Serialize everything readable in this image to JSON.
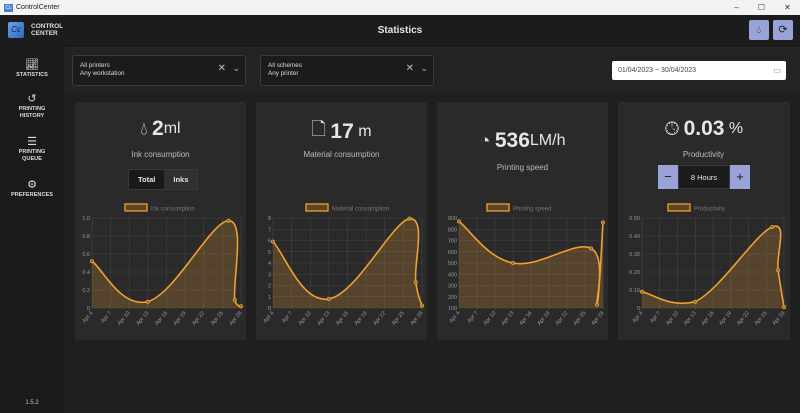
{
  "window": {
    "title": "ControlCenter",
    "minimize": "–",
    "maximize": "☐",
    "close": "✕"
  },
  "header": {
    "brand_line1": "CONTROL",
    "brand_line2": "CENTER",
    "logo": "Cc",
    "title": "Statistics",
    "ink_button_icon": "droplet-icon",
    "refresh_button_icon": "refresh-icon"
  },
  "sidebar": {
    "items": [
      {
        "label": "STATISTICS",
        "icon": "chart-icon"
      },
      {
        "label": "PRINTING HISTORY",
        "icon": "history-icon"
      },
      {
        "label": "PRINTING QUEUE",
        "icon": "list-icon"
      },
      {
        "label": "PREFERENCES",
        "icon": "gear-icon"
      }
    ],
    "version": "1.5.2"
  },
  "filters": {
    "printers": {
      "line1": "All printers",
      "line2": "Any workstation"
    },
    "schemes": {
      "line1": "All schemes",
      "line2": "Any printer"
    },
    "date_range": "01/04/2023 ~ 30/04/2023"
  },
  "cards": [
    {
      "value": "2",
      "unit": "ml",
      "label": "Ink consumption",
      "icon": "droplet-icon",
      "toggle": [
        "Total",
        "Inks"
      ],
      "active_toggle": "Total"
    },
    {
      "value": "17",
      "unit": "m",
      "label": "Material consumption",
      "icon": "file-icon"
    },
    {
      "value": "536",
      "unit": "LM/h",
      "label": "Printing speed",
      "icon": "speedometer-icon"
    },
    {
      "value": "0.03",
      "unit": "%",
      "label": "Productivity",
      "icon": "clock-icon",
      "stepper": {
        "value": "8 Hours",
        "minus": "−",
        "plus": "+"
      }
    }
  ],
  "colors": {
    "accent": "#f0a030",
    "button": "#9aa3d8",
    "card": "#2a2a2a"
  },
  "chart_data": [
    {
      "type": "area",
      "title": "",
      "legend": "Ink consumption",
      "legend_position": "top",
      "grid": true,
      "x_ticks": [
        "Apr 4",
        "Apr 7",
        "Apr 10",
        "Apr 13",
        "Apr 16",
        "Apr 19",
        "Apr 22",
        "Apr 25",
        "Apr 28"
      ],
      "ylim": [
        0,
        1
      ],
      "y_ticks": [
        "0",
        "0.2",
        "0.4",
        "0.6",
        "0.8",
        "1.0"
      ],
      "x": [
        4,
        13,
        26,
        27,
        28
      ],
      "values": [
        0.52,
        0.07,
        0.97,
        0.09,
        0.02
      ]
    },
    {
      "type": "area",
      "title": "",
      "legend": "Material consumption",
      "legend_position": "top",
      "grid": true,
      "x_ticks": [
        "Apr 4",
        "Apr 7",
        "Apr 10",
        "Apr 13",
        "Apr 16",
        "Apr 19",
        "Apr 22",
        "Apr 25",
        "Apr 28"
      ],
      "ylim": [
        0,
        8
      ],
      "y_ticks": [
        "0",
        "1",
        "2",
        "3",
        "4",
        "5",
        "6",
        "7",
        "8"
      ],
      "x": [
        4,
        13,
        26,
        27,
        28
      ],
      "values": [
        5.9,
        0.8,
        7.95,
        2.3,
        0.2
      ]
    },
    {
      "type": "area",
      "title": "",
      "legend": "Printing speed",
      "legend_position": "top",
      "grid": true,
      "x_ticks": [
        "Apr 4",
        "Apr 7",
        "Apr 10",
        "Apr 13",
        "Apr 16",
        "Apr 19",
        "Apr 22",
        "Apr 25",
        "Apr 28"
      ],
      "ylim": [
        100,
        900
      ],
      "y_ticks": [
        "100",
        "200",
        "300",
        "400",
        "500",
        "600",
        "700",
        "800",
        "900"
      ],
      "x": [
        4,
        13,
        26,
        27,
        28
      ],
      "values": [
        870,
        500,
        630,
        130,
        860
      ]
    },
    {
      "type": "area",
      "title": "",
      "legend": "Productivity",
      "legend_position": "top",
      "grid": true,
      "x_ticks": [
        "Apr 4",
        "Apr 7",
        "Apr 10",
        "Apr 13",
        "Apr 16",
        "Apr 19",
        "Apr 22",
        "Apr 25",
        "Apr 28"
      ],
      "ylim": [
        0,
        0.5
      ],
      "y_ticks": [
        "0",
        "0.10",
        "0.20",
        "0.30",
        "0.40",
        "0.50"
      ],
      "x": [
        4,
        13,
        26,
        27,
        28
      ],
      "values": [
        0.09,
        0.035,
        0.45,
        0.21,
        0.005
      ]
    }
  ]
}
